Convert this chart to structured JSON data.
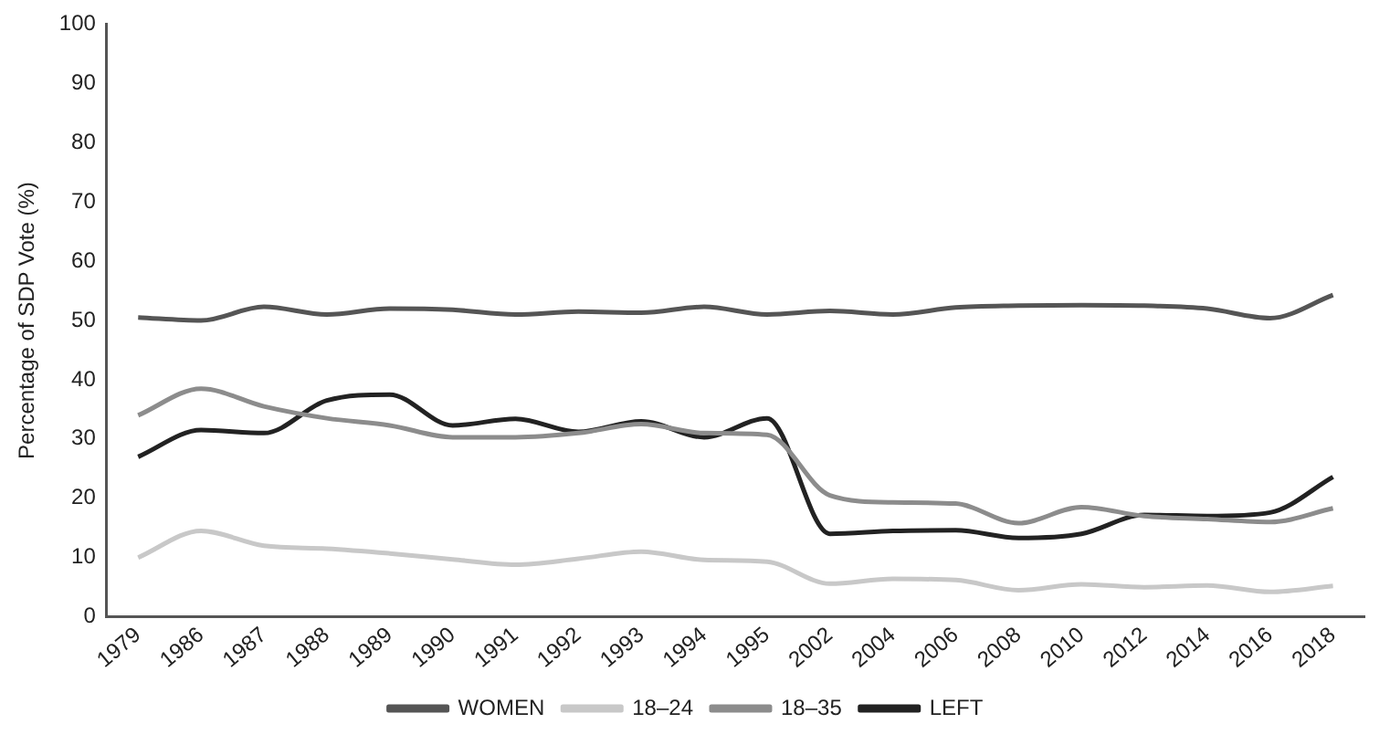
{
  "chart_data": {
    "type": "line",
    "ylabel": "Percentage of SDP Vote (%)",
    "categories": [
      "1979",
      "1986",
      "1987",
      "1988",
      "1989",
      "1990",
      "1991",
      "1992",
      "1993",
      "1994",
      "1995",
      "2002",
      "2004",
      "2006",
      "2008",
      "2010",
      "2012",
      "2014",
      "2016",
      "2018"
    ],
    "series": [
      {
        "name": "WOMEN",
        "color": "#555555",
        "values": [
          50.5,
          50,
          52.3,
          51,
          52,
          51.8,
          51,
          51.5,
          51.3,
          52.3,
          51,
          51.6,
          51,
          52.2,
          52.5,
          52.6,
          52.5,
          52,
          50.4,
          54.3
        ]
      },
      {
        "name": "18–24",
        "color": "#c8c8c8",
        "values": [
          10,
          14.5,
          12,
          11.5,
          10.7,
          9.7,
          8.8,
          9.8,
          11,
          9.6,
          9.3,
          5.6,
          6.4,
          6.2,
          4.5,
          5.5,
          5,
          5.3,
          4.2,
          5.2
        ]
      },
      {
        "name": "18–35",
        "color": "#8c8c8c",
        "values": [
          34,
          38.5,
          35.5,
          33.5,
          32.3,
          30.3,
          30.3,
          31,
          32.5,
          31,
          30.7,
          20.5,
          19.3,
          19.1,
          15.8,
          18.5,
          17,
          16.5,
          16,
          18.3
        ]
      },
      {
        "name": "LEFT",
        "color": "#222222",
        "values": [
          27,
          31.5,
          31,
          36.5,
          37.5,
          32.3,
          33.4,
          31.2,
          33,
          30.3,
          33.5,
          14,
          14.5,
          14.6,
          13.3,
          14,
          17.2,
          17,
          17.6,
          23.6
        ]
      }
    ],
    "ylim": [
      0,
      100
    ],
    "yticks": [
      0,
      10,
      20,
      30,
      40,
      50,
      60,
      70,
      80,
      90,
      100
    ],
    "grid": false,
    "legend": "bottom",
    "marker": "none",
    "line_style": "solid"
  }
}
